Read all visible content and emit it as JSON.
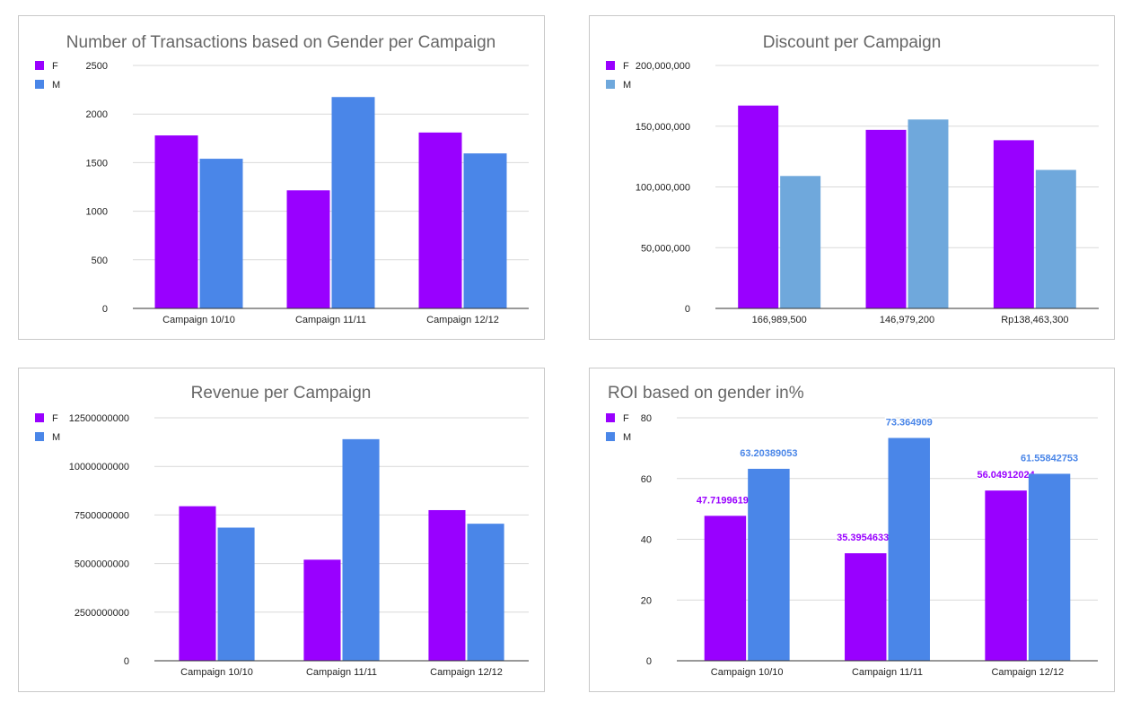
{
  "chart_data": [
    {
      "type": "bar",
      "title": "Number of Transactions based on Gender per Campaign",
      "categories": [
        "Campaign 10/10",
        "Campaign 11/11",
        "Campaign 12/12"
      ],
      "series": [
        {
          "name": "F",
          "color": "#9900ff",
          "values": [
            1780,
            1215,
            1810
          ]
        },
        {
          "name": "M",
          "color": "#4a86e8",
          "values": [
            1540,
            2175,
            1595
          ]
        }
      ],
      "ylim": [
        0,
        2500
      ],
      "yticks": [
        "0",
        "500",
        "1000",
        "1500",
        "2000",
        "2500"
      ],
      "grid": true,
      "legend": "top-left",
      "data_labels": false
    },
    {
      "type": "bar",
      "title": "Discount per Campaign",
      "categories": [
        "166,989,500",
        "146,979,200",
        "Rp138,463,300"
      ],
      "series": [
        {
          "name": "F",
          "color": "#9900ff",
          "values": [
            166989500,
            146979200,
            138463300
          ]
        },
        {
          "name": "M",
          "color": "#6fa8dc",
          "values": [
            109000000,
            155500000,
            114000000
          ]
        }
      ],
      "ylim": [
        0,
        200000000
      ],
      "yticks": [
        "0",
        "50,000,000",
        "100,000,000",
        "150,000,000",
        "200,000,000"
      ],
      "grid": true,
      "legend": "top-left",
      "data_labels": false
    },
    {
      "type": "bar",
      "title": "Revenue per Campaign",
      "categories": [
        "Campaign 10/10",
        "Campaign 11/11",
        "Campaign 12/12"
      ],
      "series": [
        {
          "name": "F",
          "color": "#9900ff",
          "values": [
            7950000000,
            5200000000,
            7750000000
          ]
        },
        {
          "name": "M",
          "color": "#4a86e8",
          "values": [
            6850000000,
            11400000000,
            7050000000
          ]
        }
      ],
      "ylim": [
        0,
        12500000000
      ],
      "yticks": [
        "0",
        "2500000000",
        "5000000000",
        "7500000000",
        "10000000000",
        "12500000000"
      ],
      "grid": true,
      "legend": "top-left",
      "data_labels": false
    },
    {
      "type": "bar",
      "title": "ROI based on gender in%",
      "categories": [
        "Campaign 10/10",
        "Campaign 11/11",
        "Campaign 12/12"
      ],
      "series": [
        {
          "name": "F",
          "color": "#9900ff",
          "values": [
            47.71996197,
            35.39546337,
            56.04912024
          ],
          "labels": [
            "47.71996197",
            "35.39546337",
            "56.04912024"
          ]
        },
        {
          "name": "M",
          "color": "#4a86e8",
          "values": [
            63.20389053,
            73.364909,
            61.55842753
          ],
          "labels": [
            "63.20389053",
            "73.364909",
            "61.55842753"
          ]
        }
      ],
      "ylim": [
        0,
        80
      ],
      "yticks": [
        "0",
        "20",
        "40",
        "60",
        "80"
      ],
      "grid": true,
      "legend": "top-left",
      "title_align": "left",
      "data_labels": true
    }
  ]
}
